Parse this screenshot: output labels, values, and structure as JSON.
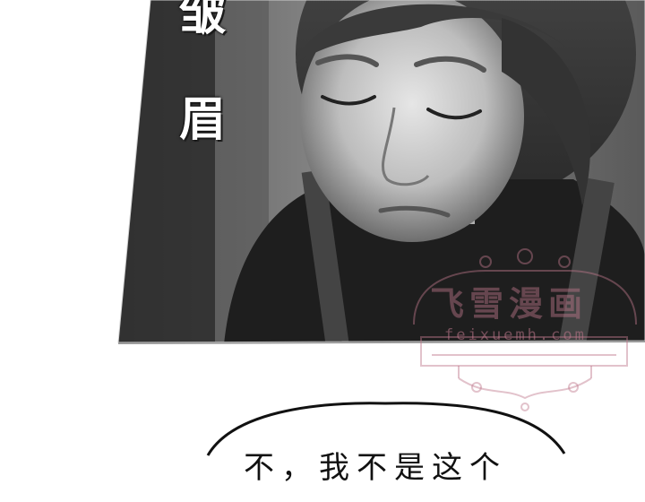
{
  "panel": {
    "caption_line1": "皱",
    "caption_line2": "眉"
  },
  "watermark": {
    "title": "飞雪漫画",
    "url": "feixuemh.com"
  },
  "bubble": {
    "text": "不，我不是这个"
  }
}
